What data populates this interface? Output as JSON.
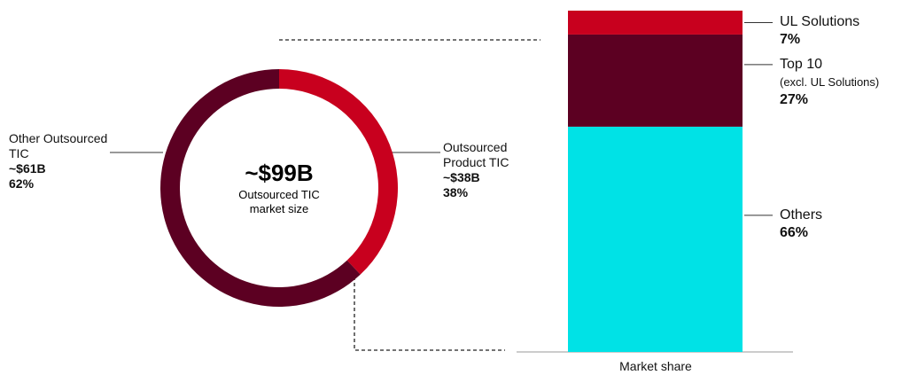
{
  "chart_data": [
    {
      "type": "donut",
      "center_title": "~$99B",
      "center_subtitle": "Outsourced TIC market size",
      "categories": [
        "Outsourced Product TIC",
        "Other Outsourced TIC"
      ],
      "values": [
        38,
        62
      ],
      "amount_labels": [
        "~$38B",
        "~$61B"
      ],
      "colors": [
        "#c8001e",
        "#5c0022"
      ]
    },
    {
      "type": "stacked_bar",
      "categories": [
        "Market share"
      ],
      "ylim": [
        0,
        100
      ],
      "series": [
        {
          "name": "Others",
          "color": "#00e2e6",
          "values": [
            66
          ]
        },
        {
          "name": "Top 10",
          "note": "(excl. UL Solutions)",
          "color": "#5c0022",
          "values": [
            27
          ]
        },
        {
          "name": "UL Solutions",
          "color": "#c8001e",
          "values": [
            7
          ]
        }
      ]
    }
  ]
}
